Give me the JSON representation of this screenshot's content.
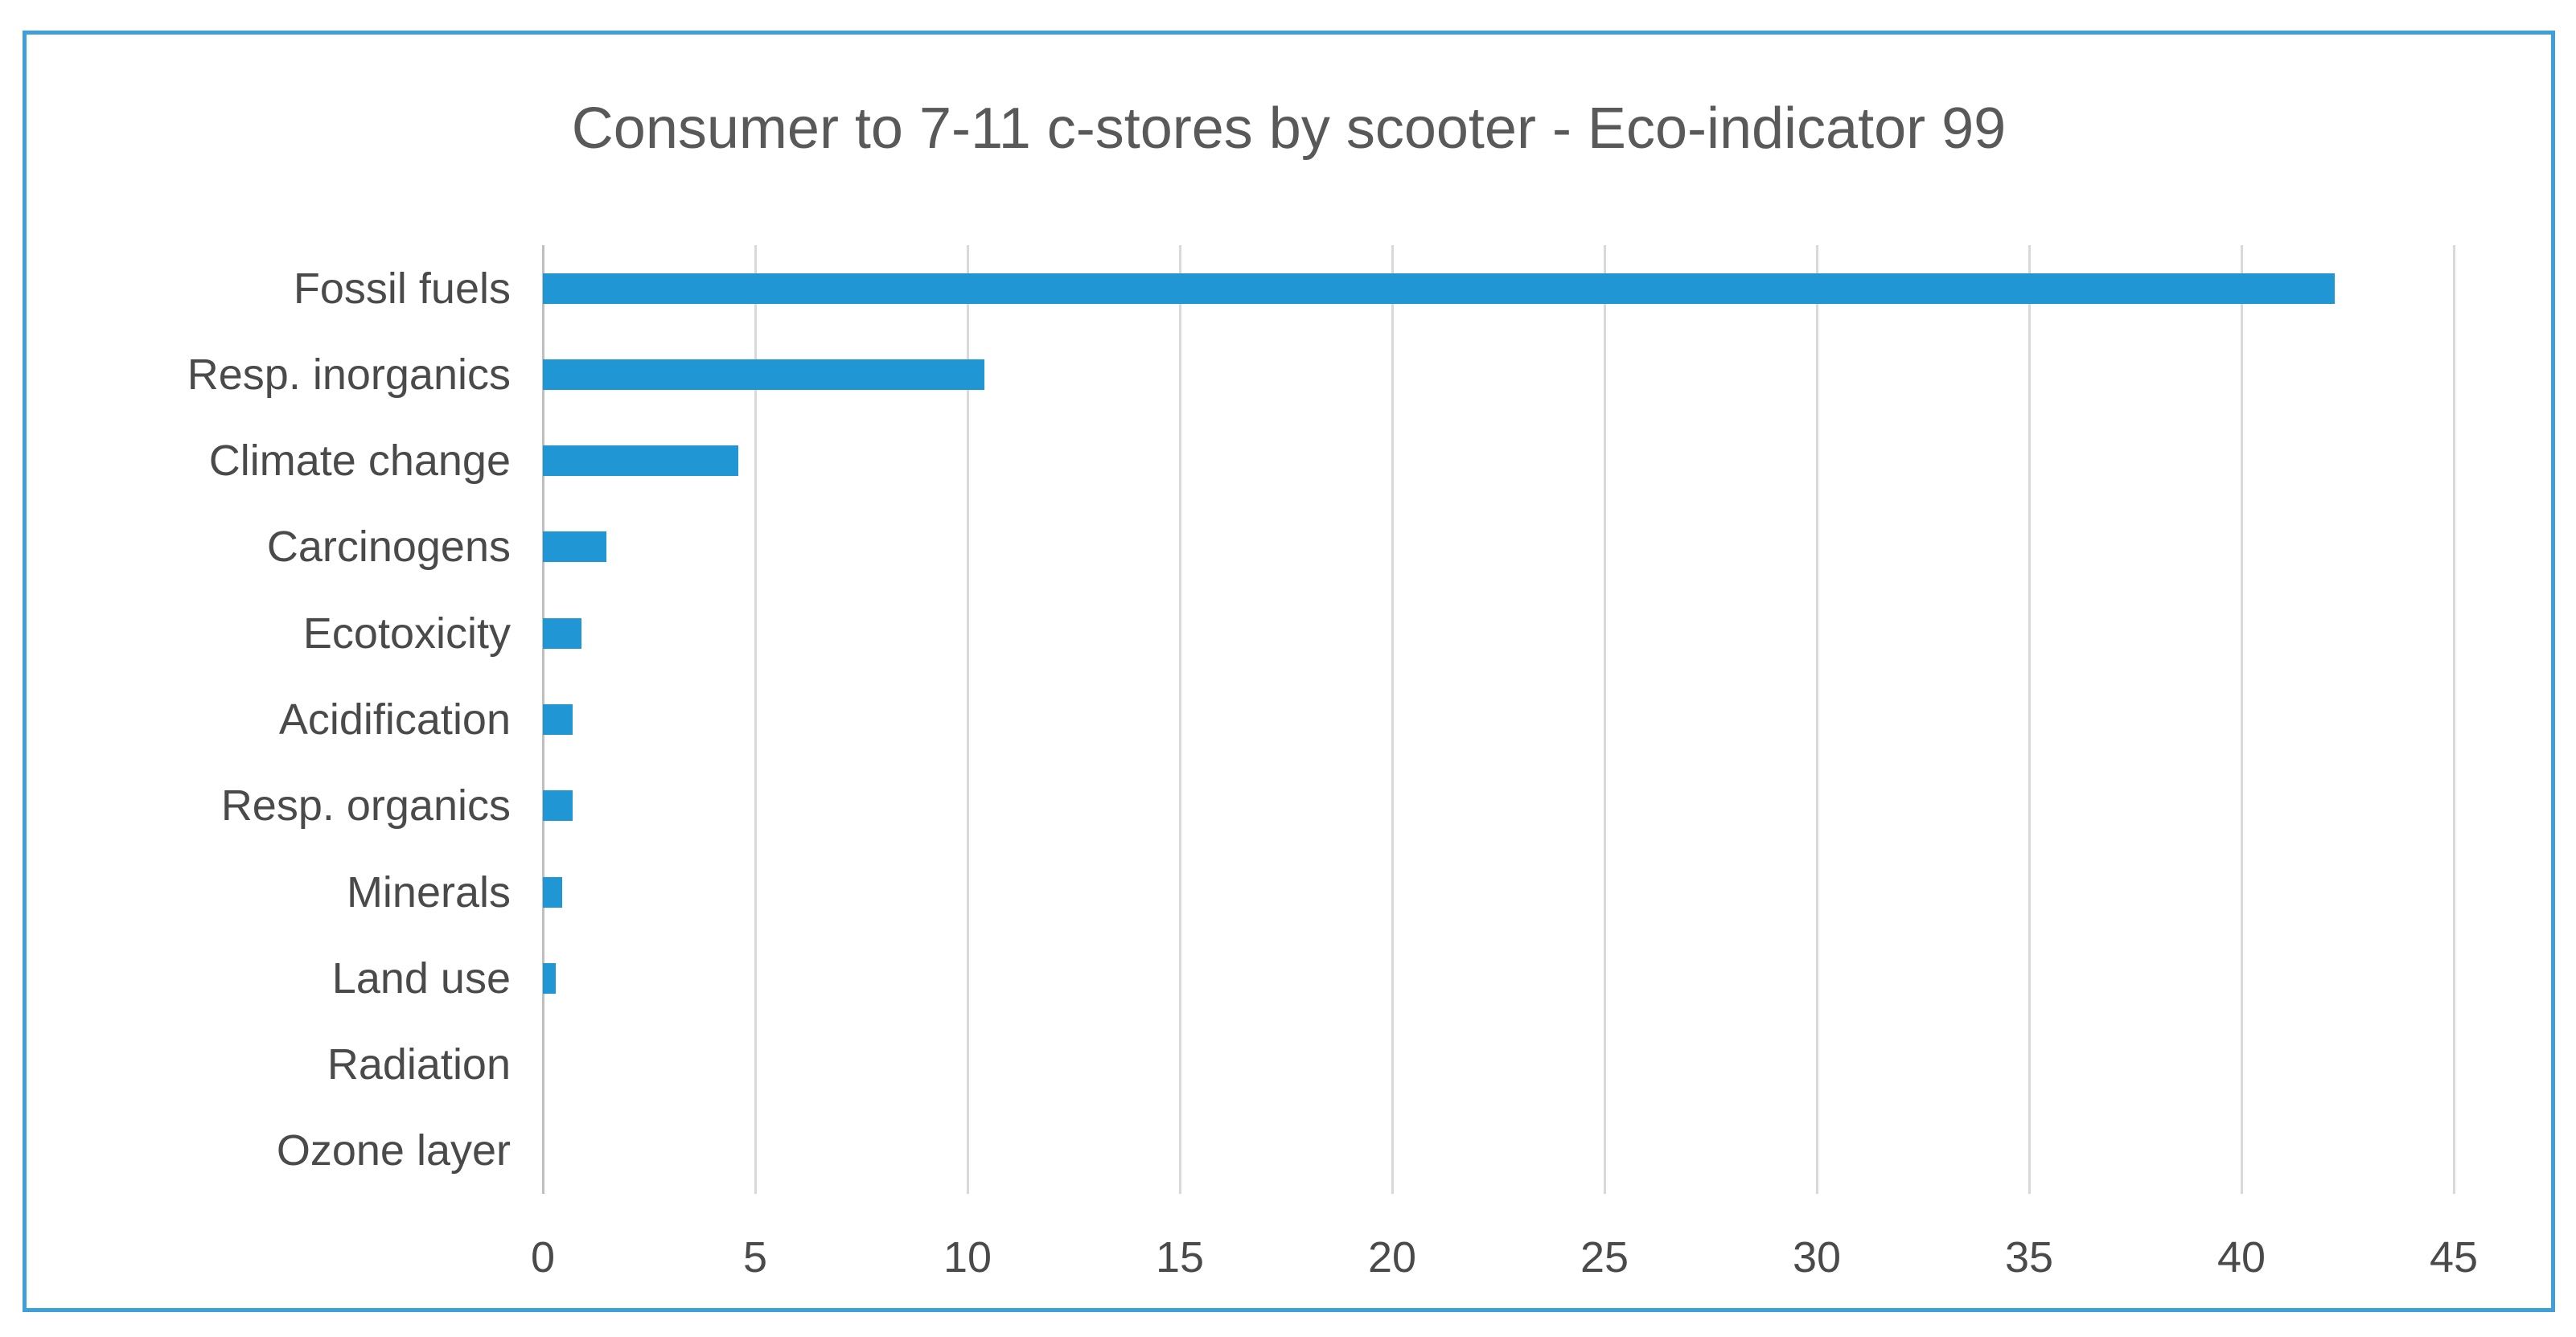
{
  "chart_data": {
    "type": "bar",
    "orientation": "horizontal",
    "title": "Consumer to 7-11 c-stores by scooter - Eco-indicator 99",
    "categories": [
      "Fossil fuels",
      "Resp. inorganics",
      "Climate change",
      "Carcinogens",
      "Ecotoxicity",
      "Acidification",
      "Resp. organics",
      "Minerals",
      "Land use",
      "Radiation",
      "Ozone layer"
    ],
    "values": [
      42.2,
      10.4,
      4.6,
      1.5,
      0.9,
      0.7,
      0.7,
      0.45,
      0.3,
      0,
      0
    ],
    "xlabel": "",
    "ylabel": "",
    "xlim": [
      0,
      45
    ],
    "x_ticks": [
      0,
      5,
      10,
      15,
      20,
      25,
      30,
      35,
      40,
      45
    ],
    "grid": "vertical-gridlines-on",
    "legend_position": "none"
  },
  "colors": {
    "bar": "#2097d4",
    "frame_border": "#3e9fdb",
    "gridline": "#d9d9d9",
    "axis_line": "#bfbfbf",
    "title_text": "#595959",
    "label_text": "#4a4a4a",
    "background": "#ffffff"
  }
}
